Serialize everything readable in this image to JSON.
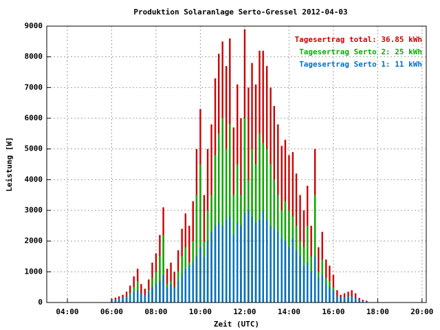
{
  "chart_data": {
    "type": "bar",
    "title": "Produktion Solaranlage Serto-Gressel 2012-04-03",
    "x_label": "Zeit (UTC)",
    "y_label": "Leistung [W]",
    "x": [
      6.0,
      6.17,
      6.33,
      6.5,
      6.67,
      6.83,
      7.0,
      7.17,
      7.33,
      7.5,
      7.67,
      7.83,
      8.0,
      8.17,
      8.33,
      8.5,
      8.67,
      8.83,
      9.0,
      9.17,
      9.33,
      9.5,
      9.67,
      9.83,
      10.0,
      10.17,
      10.33,
      10.5,
      10.67,
      10.83,
      11.0,
      11.17,
      11.33,
      11.5,
      11.67,
      11.83,
      12.0,
      12.17,
      12.33,
      12.5,
      12.67,
      12.83,
      13.0,
      13.17,
      13.33,
      13.5,
      13.67,
      13.83,
      14.0,
      14.17,
      14.33,
      14.5,
      14.67,
      14.83,
      15.0,
      15.17,
      15.33,
      15.5,
      15.67,
      15.83,
      16.0,
      16.17,
      16.33,
      16.5,
      16.67,
      16.83,
      17.0,
      17.17,
      17.33,
      17.5
    ],
    "series": [
      {
        "name": "Tagesertrag total: 36.85 kWh",
        "color": "#cc0000",
        "values": [
          120,
          160,
          200,
          250,
          350,
          550,
          850,
          1100,
          600,
          450,
          750,
          1300,
          1600,
          2200,
          3100,
          1100,
          1300,
          1000,
          1700,
          2400,
          2900,
          2500,
          3300,
          5000,
          6300,
          3500,
          5000,
          5800,
          7300,
          8100,
          8500,
          7700,
          8600,
          5700,
          7100,
          6000,
          8900,
          7000,
          7800,
          7100,
          8200,
          8200,
          7700,
          7000,
          6400,
          5800,
          5100,
          5300,
          4800,
          4900,
          4200,
          3500,
          3000,
          3800,
          2500,
          5000,
          1800,
          2300,
          1400,
          1200,
          900,
          400,
          250,
          300,
          350,
          400,
          300,
          150,
          90,
          60
        ]
      },
      {
        "name": "Tagesertrag Serto 2: 25 kWh",
        "color": "#00b000",
        "values": [
          40,
          60,
          80,
          100,
          150,
          300,
          500,
          700,
          300,
          200,
          400,
          800,
          1000,
          1500,
          2200,
          600,
          700,
          500,
          1000,
          1500,
          1800,
          1300,
          2000,
          3500,
          4500,
          2000,
          3000,
          3500,
          4800,
          5500,
          6000,
          5000,
          5800,
          3500,
          4500,
          3500,
          6000,
          4000,
          5000,
          4500,
          5500,
          5200,
          5000,
          4500,
          4000,
          3500,
          3000,
          3300,
          3000,
          2800,
          2500,
          2000,
          1800,
          2500,
          1500,
          3500,
          1000,
          1400,
          800,
          700,
          500,
          200,
          100,
          120,
          150,
          200,
          150,
          50,
          30,
          20
        ]
      },
      {
        "name": "Tagesertrag Serto 1: 11 kWh",
        "color": "#0070c8",
        "values": [
          80,
          100,
          120,
          150,
          200,
          250,
          350,
          400,
          300,
          250,
          350,
          500,
          600,
          700,
          900,
          500,
          600,
          500,
          700,
          900,
          1100,
          1200,
          1300,
          1500,
          1800,
          1500,
          2000,
          2300,
          2500,
          2600,
          2500,
          2700,
          2800,
          2200,
          2600,
          2500,
          2900,
          3000,
          2800,
          2600,
          2700,
          3000,
          2700,
          2500,
          2400,
          2300,
          2100,
          2000,
          1800,
          2100,
          1700,
          1500,
          1200,
          1300,
          1000,
          1500,
          800,
          900,
          600,
          500,
          400,
          200,
          150,
          180,
          200,
          200,
          150,
          100,
          60,
          40
        ]
      }
    ],
    "xlim": [
      3.07,
      20.19
    ],
    "xticks": [
      {
        "value": 4,
        "label": "04:00"
      },
      {
        "value": 6,
        "label": "06:00"
      },
      {
        "value": 8,
        "label": "08:00"
      },
      {
        "value": 10,
        "label": "10:00"
      },
      {
        "value": 12,
        "label": "12:00"
      },
      {
        "value": 14,
        "label": "14:00"
      },
      {
        "value": 16,
        "label": "16:00"
      },
      {
        "value": 18,
        "label": "18:00"
      },
      {
        "value": 20,
        "label": "20:00"
      }
    ],
    "ylim": [
      0,
      9000
    ],
    "yticks": [
      0,
      1000,
      2000,
      3000,
      4000,
      5000,
      6000,
      7000,
      8000,
      9000
    ],
    "grid": true,
    "legend": "upper right"
  }
}
